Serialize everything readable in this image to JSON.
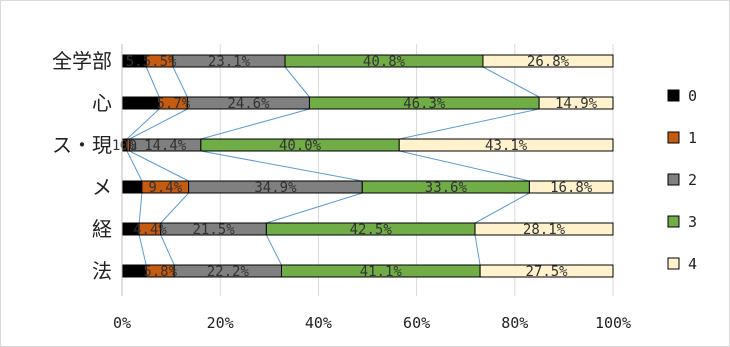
{
  "chart_data": {
    "type": "bar",
    "orientation": "horizontal",
    "stacked": "percent",
    "categories": [
      "全学部",
      "心",
      "ス・現",
      "メ",
      "経",
      "法"
    ],
    "series": [
      {
        "name": "0",
        "color": "#000000",
        "values": [
          5.0,
          7.5,
          1.0,
          4.0,
          3.5,
          5.0
        ]
      },
      {
        "name": "1",
        "color": "#c55a11",
        "values": [
          5.5,
          5.7,
          0.5,
          9.4,
          4.4,
          5.8
        ]
      },
      {
        "name": "2",
        "color": "#808080",
        "values": [
          23.1,
          24.6,
          14.4,
          34.9,
          21.5,
          22.2
        ]
      },
      {
        "name": "3",
        "color": "#70ad47",
        "values": [
          40.8,
          46.3,
          40.0,
          33.6,
          42.5,
          41.1
        ]
      },
      {
        "name": "4",
        "color": "#fff2cc",
        "values": [
          26.8,
          14.9,
          43.1,
          16.8,
          28.1,
          27.5
        ]
      }
    ],
    "data_labels": [
      [
        "5.",
        "5.5%",
        "23.1%",
        "40.8%",
        "26.8%"
      ],
      [
        "",
        "5.7%",
        "24.6%",
        "46.3%",
        "14.9%"
      ],
      [
        "1.0",
        "0%",
        "14.4%",
        "40.0%",
        "43.1%"
      ],
      [
        "",
        "9.4%",
        "34.9%",
        "33.6%",
        "16.8%"
      ],
      [
        "",
        "4.4%",
        "21.5%",
        "42.5%",
        "28.1%"
      ],
      [
        "",
        "5.8%",
        "22.2%",
        "41.1%",
        "27.5%"
      ]
    ],
    "x_ticks": [
      "0%",
      "20%",
      "40%",
      "60%",
      "80%",
      "100%"
    ],
    "xlim": [
      0,
      100
    ],
    "grid": true,
    "legend_position": "right",
    "series_lines": true,
    "line_color": "#5b9bd5"
  }
}
